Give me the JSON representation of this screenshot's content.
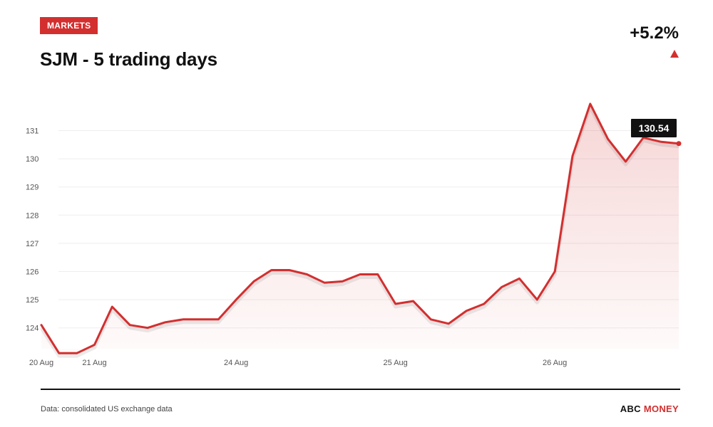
{
  "header": {
    "badge": "MARKETS",
    "title": "SJM - 5 trading days",
    "change": "+5.2%"
  },
  "footer": {
    "source": "Data: consolidated US exchange data",
    "brand_part1": "ABC",
    "brand_part2": "MONEY"
  },
  "colors": {
    "accent": "#d32f2f",
    "grid": "#eeeeee",
    "tooltip_bg": "#111111"
  },
  "chart_data": {
    "type": "area",
    "title": "SJM - 5 trading days",
    "xlabel": "",
    "ylabel": "",
    "ylim": [
      123.4,
      132
    ],
    "yticks": [
      124,
      125,
      126,
      127,
      128,
      129,
      130,
      131
    ],
    "grid": true,
    "x_tick_labels": [
      "20 Aug",
      "21 Aug",
      "24 Aug",
      "25 Aug",
      "26 Aug"
    ],
    "x_tick_index": [
      0,
      3,
      11,
      20,
      29
    ],
    "last_value_label": "130.54",
    "series": [
      {
        "values": [
          124.1,
          123.1,
          123.1,
          123.4,
          124.75,
          124.1,
          124.0,
          124.2,
          124.3,
          124.3,
          124.3,
          125.0,
          125.65,
          126.05,
          126.05,
          125.9,
          125.6,
          125.65,
          125.9,
          125.9,
          124.85,
          124.95,
          124.3,
          124.15,
          124.6,
          124.85,
          125.45,
          125.75,
          125.0,
          126.0,
          130.1,
          131.95,
          130.7,
          129.9,
          130.75,
          130.6,
          130.54
        ]
      }
    ]
  }
}
